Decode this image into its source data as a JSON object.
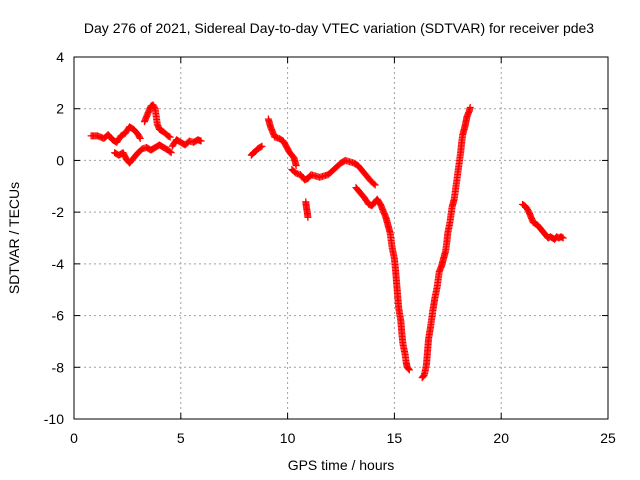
{
  "chart_data": {
    "type": "scatter",
    "title": "Day 276 of 2021, Sidereal Day-to-day VTEC variation (SDTVAR) for receiver pde3",
    "xlabel": "GPS time / hours",
    "ylabel": "SDTVAR / TECUs",
    "xlim": [
      0,
      25
    ],
    "ylim": [
      -10,
      4
    ],
    "xticks": [
      "0",
      "5",
      "10",
      "15",
      "20",
      "25"
    ],
    "yticks": [
      "-10",
      "-8",
      "-6",
      "-4",
      "-2",
      "0",
      "2",
      "4"
    ],
    "grid": true,
    "marker": "plus",
    "color": "#ff0000",
    "series": [
      {
        "segments": [
          [
            [
              0.8,
              0.95
            ],
            [
              1.1,
              0.95
            ],
            [
              1.4,
              0.85
            ],
            [
              1.6,
              1.0
            ],
            [
              1.8,
              0.8
            ],
            [
              2.0,
              0.7
            ],
            [
              2.2,
              0.95
            ],
            [
              2.4,
              1.05
            ],
            [
              2.6,
              1.3
            ],
            [
              2.8,
              1.2
            ],
            [
              3.0,
              1.0
            ],
            [
              3.1,
              0.85
            ]
          ],
          [
            [
              1.9,
              0.3
            ],
            [
              2.1,
              0.2
            ],
            [
              2.3,
              0.3
            ],
            [
              2.45,
              0.05
            ],
            [
              2.6,
              -0.1
            ],
            [
              2.8,
              0.1
            ],
            [
              3.0,
              0.3
            ],
            [
              3.2,
              0.45
            ],
            [
              3.4,
              0.5
            ],
            [
              3.6,
              0.4
            ],
            [
              3.8,
              0.5
            ],
            [
              4.0,
              0.6
            ],
            [
              4.2,
              0.5
            ],
            [
              4.4,
              0.4
            ],
            [
              4.55,
              0.3
            ]
          ],
          [
            [
              3.3,
              1.5
            ],
            [
              3.4,
              1.7
            ],
            [
              3.5,
              1.9
            ],
            [
              3.6,
              2.1
            ],
            [
              3.7,
              2.15
            ],
            [
              3.8,
              2.0
            ],
            [
              3.85,
              1.7
            ],
            [
              3.9,
              1.4
            ],
            [
              4.0,
              1.2
            ],
            [
              4.2,
              1.1
            ],
            [
              4.4,
              0.95
            ],
            [
              4.5,
              0.9
            ]
          ],
          [
            [
              4.6,
              0.55
            ],
            [
              4.8,
              0.8
            ],
            [
              5.0,
              0.7
            ],
            [
              5.2,
              0.6
            ],
            [
              5.4,
              0.75
            ],
            [
              5.6,
              0.7
            ],
            [
              5.8,
              0.8
            ],
            [
              5.95,
              0.75
            ]
          ],
          [
            [
              8.3,
              0.2
            ],
            [
              8.4,
              0.3
            ],
            [
              8.5,
              0.35
            ],
            [
              8.6,
              0.45
            ],
            [
              8.7,
              0.5
            ],
            [
              8.8,
              0.55
            ]
          ],
          [
            [
              9.1,
              1.6
            ],
            [
              9.2,
              1.3
            ],
            [
              9.3,
              1.1
            ],
            [
              9.4,
              0.9
            ],
            [
              9.6,
              0.85
            ],
            [
              9.8,
              0.75
            ],
            [
              9.9,
              0.6
            ],
            [
              10.1,
              0.3
            ],
            [
              10.3,
              0.1
            ],
            [
              10.4,
              -0.2
            ]
          ],
          [
            [
              10.85,
              -1.6
            ],
            [
              10.88,
              -1.8
            ],
            [
              10.92,
              -2.0
            ],
            [
              10.95,
              -2.2
            ]
          ],
          [
            [
              10.2,
              -0.35
            ],
            [
              10.4,
              -0.5
            ],
            [
              10.6,
              -0.55
            ],
            [
              10.8,
              -0.75
            ],
            [
              10.95,
              -0.7
            ],
            [
              11.1,
              -0.55
            ],
            [
              11.3,
              -0.6
            ],
            [
              11.5,
              -0.65
            ],
            [
              11.7,
              -0.6
            ],
            [
              11.9,
              -0.55
            ],
            [
              12.1,
              -0.4
            ],
            [
              12.3,
              -0.25
            ],
            [
              12.5,
              -0.1
            ],
            [
              12.7,
              0.0
            ],
            [
              12.9,
              -0.05
            ],
            [
              13.1,
              -0.1
            ],
            [
              13.3,
              -0.2
            ],
            [
              13.5,
              -0.4
            ],
            [
              13.7,
              -0.6
            ],
            [
              13.9,
              -0.8
            ],
            [
              14.1,
              -0.95
            ]
          ],
          [
            [
              13.2,
              -1.05
            ],
            [
              13.4,
              -1.25
            ],
            [
              13.6,
              -1.45
            ],
            [
              13.8,
              -1.7
            ],
            [
              13.95,
              -1.75
            ],
            [
              14.1,
              -1.6
            ],
            [
              14.2,
              -1.5
            ],
            [
              14.35,
              -1.7
            ],
            [
              14.5,
              -2.0
            ],
            [
              14.6,
              -2.2
            ],
            [
              14.7,
              -2.5
            ],
            [
              14.8,
              -2.8
            ],
            [
              14.85,
              -3.1
            ],
            [
              14.9,
              -3.4
            ],
            [
              15.0,
              -3.8
            ],
            [
              15.05,
              -4.2
            ],
            [
              15.1,
              -4.7
            ],
            [
              15.15,
              -5.2
            ],
            [
              15.2,
              -5.7
            ],
            [
              15.3,
              -6.2
            ],
            [
              15.35,
              -6.7
            ],
            [
              15.4,
              -7.1
            ],
            [
              15.5,
              -7.5
            ],
            [
              15.55,
              -7.8
            ],
            [
              15.6,
              -8.0
            ],
            [
              15.7,
              -8.1
            ]
          ],
          [
            [
              16.3,
              -8.4
            ],
            [
              16.4,
              -8.3
            ],
            [
              16.5,
              -7.9
            ],
            [
              16.55,
              -7.4
            ],
            [
              16.6,
              -6.9
            ],
            [
              16.7,
              -6.4
            ],
            [
              16.8,
              -5.8
            ],
            [
              16.9,
              -5.3
            ],
            [
              17.0,
              -4.9
            ],
            [
              17.1,
              -4.3
            ],
            [
              17.2,
              -4.1
            ],
            [
              17.3,
              -3.8
            ],
            [
              17.4,
              -3.5
            ],
            [
              17.45,
              -3.2
            ],
            [
              17.5,
              -2.8
            ],
            [
              17.6,
              -2.4
            ],
            [
              17.65,
              -2.1
            ],
            [
              17.7,
              -1.8
            ],
            [
              17.8,
              -1.5
            ],
            [
              17.85,
              -1.2
            ],
            [
              17.9,
              -0.9
            ],
            [
              17.95,
              -0.6
            ],
            [
              18.0,
              -0.3
            ],
            [
              18.05,
              0.0
            ],
            [
              18.1,
              0.3
            ],
            [
              18.15,
              0.7
            ],
            [
              18.2,
              1.0
            ],
            [
              18.3,
              1.3
            ],
            [
              18.35,
              1.5
            ],
            [
              18.4,
              1.7
            ],
            [
              18.5,
              1.9
            ],
            [
              18.55,
              2.05
            ]
          ],
          [
            [
              21.0,
              -1.7
            ],
            [
              21.1,
              -1.75
            ],
            [
              21.2,
              -1.85
            ],
            [
              21.3,
              -2.0
            ],
            [
              21.4,
              -2.2
            ],
            [
              21.5,
              -2.4
            ],
            [
              21.6,
              -2.45
            ],
            [
              21.7,
              -2.5
            ],
            [
              21.8,
              -2.6
            ],
            [
              21.9,
              -2.7
            ],
            [
              22.0,
              -2.8
            ],
            [
              22.1,
              -2.9
            ],
            [
              22.2,
              -3.0
            ],
            [
              22.3,
              -2.95
            ],
            [
              22.4,
              -3.0
            ],
            [
              22.5,
              -3.05
            ],
            [
              22.6,
              -2.95
            ],
            [
              22.7,
              -3.0
            ],
            [
              22.8,
              -2.95
            ],
            [
              22.9,
              -3.0
            ]
          ]
        ]
      }
    ]
  }
}
